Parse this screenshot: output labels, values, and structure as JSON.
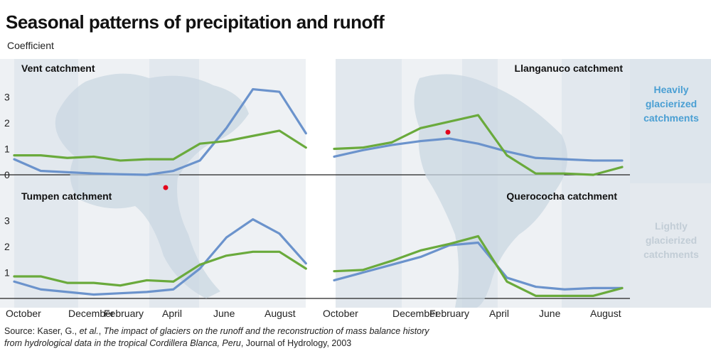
{
  "title": "Seasonal patterns of precipitation and runoff",
  "subtitle": "Coefficient",
  "source": {
    "prefix": "Source: Kaser, G., ",
    "etal": "et al.",
    "sep": ", ",
    "paper": "The impact of glaciers on the runoff and the reconstruction of mass balance history from hydrological data in the tropical Cordillera Blanca, Peru",
    "journal": ", Journal of Hydrology, 2003"
  },
  "side_labels": {
    "heavy": [
      "Heavily",
      "glacierized",
      "catchments"
    ],
    "light": [
      "Lightly",
      "glacierized",
      "catchments"
    ]
  },
  "colors": {
    "blue": "#6b93cc",
    "green": "#6aaa3c",
    "heavy_label": "#4a9fd3",
    "light_label": "#c2cdd6",
    "dot": "#e3001b"
  },
  "chart_data": [
    {
      "type": "line",
      "title": "Vent catchment",
      "x_ticks": [
        "October",
        "December",
        "February",
        "April",
        "June",
        "August"
      ],
      "ylim": [
        0,
        3.5
      ],
      "y_ticks": [
        0,
        1,
        2,
        3
      ],
      "series": [
        {
          "color": "blue",
          "values": [
            0.6,
            0.15,
            0.1,
            0.05,
            0.02,
            0.0,
            0.15,
            0.55,
            1.8,
            3.3,
            3.2,
            1.6
          ]
        },
        {
          "color": "green",
          "values": [
            0.75,
            0.75,
            0.65,
            0.7,
            0.55,
            0.6,
            0.6,
            1.2,
            1.3,
            1.5,
            1.7,
            1.05
          ]
        }
      ]
    },
    {
      "type": "line",
      "title": "Llanganuco catchment",
      "x_ticks": [
        "October",
        "December",
        "February",
        "April",
        "June",
        "August"
      ],
      "ylim": [
        0,
        3.5
      ],
      "y_ticks": [
        0,
        1,
        2,
        3
      ],
      "series": [
        {
          "color": "blue",
          "values": [
            0.7,
            0.95,
            1.15,
            1.3,
            1.4,
            1.2,
            0.9,
            0.65,
            0.6,
            0.55,
            0.55
          ]
        },
        {
          "color": "green",
          "values": [
            1.0,
            1.05,
            1.25,
            1.8,
            2.05,
            2.3,
            0.75,
            0.05,
            0.05,
            0.0,
            0.3
          ]
        }
      ]
    },
    {
      "type": "line",
      "title": "Tumpen catchment",
      "x_ticks": [
        "October",
        "December",
        "February",
        "April",
        "June",
        "August"
      ],
      "ylim": [
        0,
        3.5
      ],
      "y_ticks": [
        1,
        2,
        3
      ],
      "series": [
        {
          "color": "blue",
          "values": [
            0.65,
            0.35,
            0.25,
            0.15,
            0.2,
            0.25,
            0.35,
            1.15,
            2.35,
            3.05,
            2.5,
            1.35
          ]
        },
        {
          "color": "green",
          "values": [
            0.85,
            0.85,
            0.6,
            0.6,
            0.5,
            0.7,
            0.65,
            1.3,
            1.65,
            1.8,
            1.8,
            1.15
          ]
        }
      ]
    },
    {
      "type": "line",
      "title": "Querococha catchment",
      "x_ticks": [
        "October",
        "December",
        "February",
        "April",
        "June",
        "August"
      ],
      "ylim": [
        0,
        3.5
      ],
      "y_ticks": [
        1,
        2,
        3
      ],
      "series": [
        {
          "color": "blue",
          "values": [
            0.7,
            1.0,
            1.3,
            1.6,
            2.05,
            2.15,
            0.8,
            0.45,
            0.35,
            0.4,
            0.4
          ]
        },
        {
          "color": "green",
          "values": [
            1.05,
            1.1,
            1.45,
            1.85,
            2.1,
            2.4,
            0.65,
            0.1,
            0.1,
            0.1,
            0.4
          ]
        }
      ]
    }
  ]
}
